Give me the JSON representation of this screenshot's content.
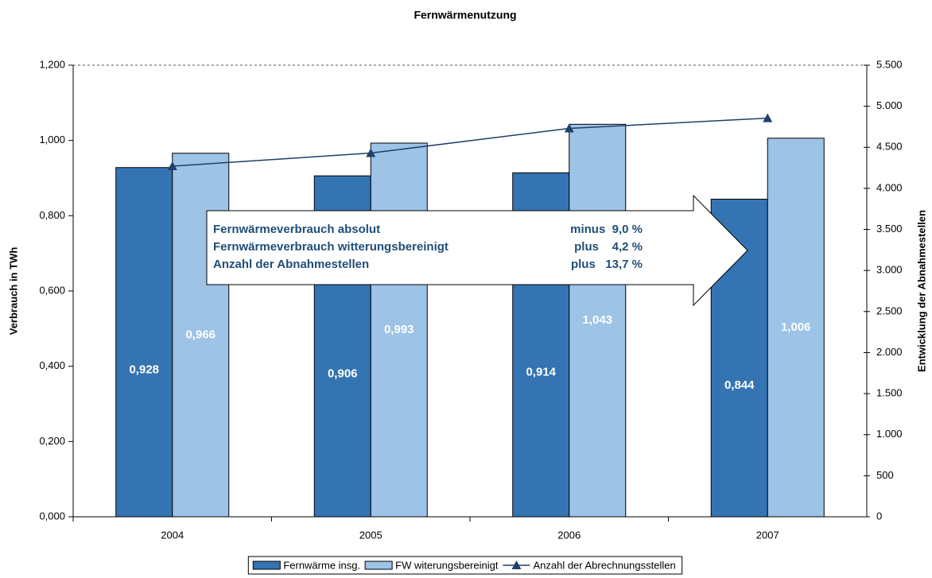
{
  "chart_data": {
    "type": "bar",
    "title": "Fernwärmenutzung",
    "ylabel": "Verbrauch in TWh",
    "y2label": "Entwicklung der Abnahmestellen",
    "categories": [
      "2004",
      "2005",
      "2006",
      "2007"
    ],
    "series": [
      {
        "name": "Fernwärme insg.",
        "color": "#3574b2",
        "values": [
          0.928,
          0.906,
          0.914,
          0.844
        ],
        "value_labels": [
          "0,928",
          "0,906",
          "0,914",
          "0,844"
        ]
      },
      {
        "name": "FW witerungsbereinigt",
        "color": "#9dc3e6",
        "values": [
          0.966,
          0.993,
          1.043,
          1.006
        ],
        "value_labels": [
          "0,966",
          "0,993",
          "1,043",
          "1,006"
        ]
      },
      {
        "name": "Anzahl der Abrechnungsstellen",
        "color": "#1f4068",
        "type": "line",
        "axis": "y2",
        "values": [
          4270,
          4430,
          4730,
          4855
        ]
      }
    ],
    "ylim": [
      0,
      1.2
    ],
    "yticks": [
      {
        "value": 0,
        "label": "0,000"
      },
      {
        "value": 0.2,
        "label": "0,200"
      },
      {
        "value": 0.4,
        "label": "0,400"
      },
      {
        "value": 0.6,
        "label": "0,600"
      },
      {
        "value": 0.8,
        "label": "0,800"
      },
      {
        "value": 1.0,
        "label": "1,000"
      },
      {
        "value": 1.2,
        "label": "1,200"
      }
    ],
    "y2lim": [
      0,
      5500
    ],
    "y2ticks": [
      0,
      500,
      {
        "value": 1000,
        "label": "1.000"
      },
      {
        "value": 1500,
        "label": "1.500"
      },
      {
        "value": 2000,
        "label": "2.000"
      },
      {
        "value": 2500,
        "label": "2.500"
      },
      {
        "value": 3000,
        "label": "3.000"
      },
      {
        "value": 3500,
        "label": "3.500"
      },
      {
        "value": 4000,
        "label": "4.000"
      },
      {
        "value": 4500,
        "label": "4.500"
      },
      {
        "value": 5000,
        "label": "5.000"
      },
      {
        "value": 5500,
        "label": "5.500"
      }
    ],
    "annotations": [
      {
        "text": "Fernwärmeverbrauch absolut",
        "value": "minus  9,0 %"
      },
      {
        "text": "Fernwärmeverbrauch witterungsbereinigt",
        "value": "plus    4,2 %"
      },
      {
        "text": "Anzahl der Abnahmestellen",
        "value": "plus   13,7 %"
      }
    ],
    "grid": false,
    "legend": "bottom"
  }
}
